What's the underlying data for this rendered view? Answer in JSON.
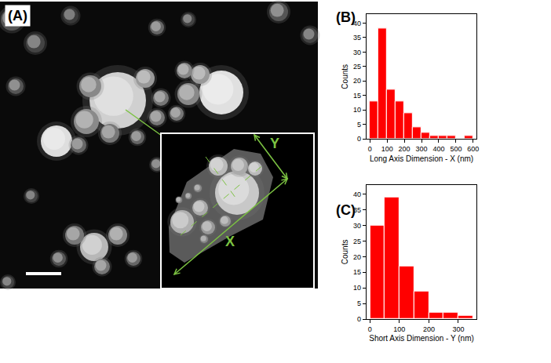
{
  "panel_a": {
    "label": "(A)",
    "inset_labels": [
      "X",
      "Y"
    ]
  },
  "chart_data": [
    {
      "type": "histogram",
      "panel_label": "(B)",
      "x_label": "Long Axis Dimension - X (nm)",
      "y_label": "Counts",
      "bins": [
        0,
        50,
        100,
        150,
        200,
        250,
        300,
        350,
        400,
        450,
        500,
        550,
        600
      ],
      "counts": [
        13,
        38,
        17,
        13,
        9,
        4,
        2,
        1,
        1,
        1,
        0,
        1
      ],
      "color": "#ff0000",
      "xlim": [
        -20,
        620
      ],
      "xticks": [
        0,
        100,
        200,
        300,
        400,
        500,
        600
      ],
      "ylim": [
        0,
        43
      ],
      "yticks": [
        0,
        5,
        10,
        15,
        20,
        25,
        30,
        35,
        40
      ],
      "grid": false
    },
    {
      "type": "histogram",
      "panel_label": "(C)",
      "x_label": "Short Axis Dimension - Y (nm)",
      "y_label": "Counts",
      "bins": [
        0,
        50,
        100,
        150,
        200,
        250,
        300,
        350
      ],
      "counts": [
        30,
        39,
        17,
        9,
        2,
        2,
        1
      ],
      "color": "#ff0000",
      "xlim": [
        -12,
        362
      ],
      "xticks": [
        0,
        100,
        200,
        300
      ],
      "ylim": [
        0,
        43
      ],
      "yticks": [
        0,
        5,
        10,
        15,
        20,
        25,
        30,
        35,
        40
      ],
      "grid": false
    }
  ]
}
